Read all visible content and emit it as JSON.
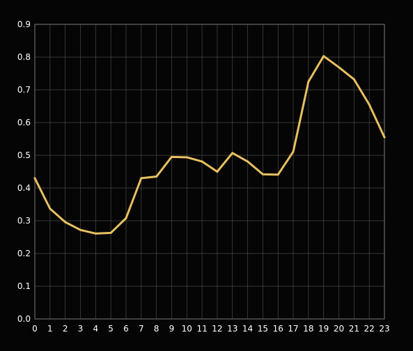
{
  "chart_data": {
    "type": "line",
    "title": "",
    "xlabel": "",
    "ylabel": "",
    "x": [
      0,
      1,
      2,
      3,
      4,
      5,
      6,
      7,
      8,
      9,
      10,
      11,
      12,
      13,
      14,
      15,
      16,
      17,
      18,
      19,
      20,
      21,
      22,
      23
    ],
    "x_tick_labels": [
      "0",
      "1",
      "2",
      "3",
      "4",
      "5",
      "6",
      "7",
      "8",
      "9",
      "10",
      "11",
      "12",
      "13",
      "14",
      "15",
      "16",
      "17",
      "18",
      "19",
      "20",
      "21",
      "22",
      "23"
    ],
    "y_tick_labels": [
      "0.0",
      "0.1",
      "0.2",
      "0.3",
      "0.4",
      "0.5",
      "0.6",
      "0.7",
      "0.8",
      "0.9"
    ],
    "xlim": [
      0,
      23
    ],
    "ylim": [
      0,
      0.9
    ],
    "grid": true,
    "legend": "none",
    "series": [
      {
        "color": "#e8c060",
        "values": [
          0.43,
          0.337,
          0.296,
          0.272,
          0.261,
          0.263,
          0.308,
          0.43,
          0.435,
          0.495,
          0.494,
          0.481,
          0.45,
          0.507,
          0.481,
          0.442,
          0.441,
          0.511,
          0.725,
          0.803,
          0.769,
          0.732,
          0.655,
          0.555
        ]
      }
    ],
    "colors": {
      "background": "#050505",
      "grid": "#4a4a4a",
      "frame": "#7a7a7a",
      "text": "#ffffff"
    }
  }
}
